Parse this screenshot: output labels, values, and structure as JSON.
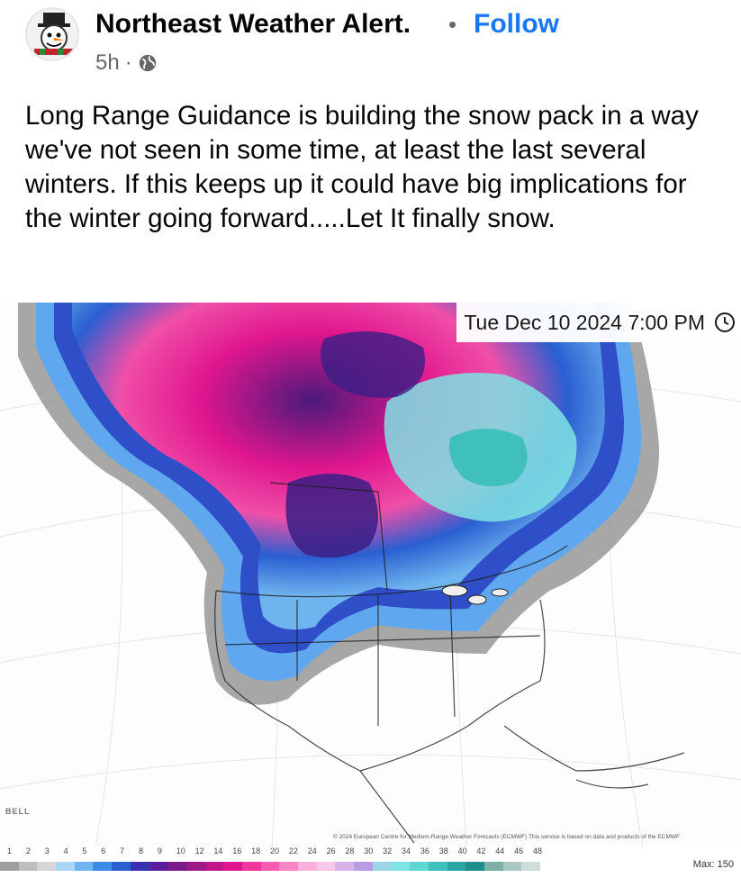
{
  "post": {
    "page_name": "Northeast Weather Alert.",
    "separator": "•",
    "follow_label": "Follow",
    "time_ago": "5h",
    "meta_separator": "·",
    "audience_icon": "globe-icon",
    "text": "Long Range Guidance is building the snow pack in a way we've not seen in some time, at least the last several winters. If this keeps up it could have big implications for the winter going forward.....Let It finally snow."
  },
  "map": {
    "timestamp": "Tue Dec 10 2024 7:00 PM",
    "timestamp_icon": "clock-icon",
    "logo_text": "BELL",
    "copyright": "© 2024 European Centre for Medium-Range Weather Forecasts (ECMWF) This service is based on data and products of the ECMWF",
    "max_label": "Max: 150",
    "legend_ticks": [
      "1",
      "2",
      "3",
      "4",
      "5",
      "6",
      "7",
      "8",
      "9",
      "10",
      "12",
      "14",
      "16",
      "18",
      "20",
      "22",
      "24",
      "26",
      "28",
      "30",
      "32",
      "34",
      "36",
      "38",
      "40",
      "42",
      "44",
      "46",
      "48"
    ],
    "legend_colors": [
      "#9e9e9e",
      "#bdbdbd",
      "#d6d6d6",
      "#a9d6f5",
      "#6fb4ef",
      "#3d8be6",
      "#2a5fd1",
      "#3a2fb0",
      "#5b1f9e",
      "#7a1a8c",
      "#9b1a86",
      "#c0168a",
      "#e0168e",
      "#f0359f",
      "#f75cb2",
      "#fb86c6",
      "#fdb0dc",
      "#f6c7ea",
      "#d8b3ea",
      "#b79be3",
      "#9ad6e8",
      "#7fe3e3",
      "#5fd6d3",
      "#3fc0bd",
      "#2aa7a4",
      "#1f8f8d",
      "#7fb0a8",
      "#a8c7c0",
      "#cfdcd8"
    ]
  }
}
